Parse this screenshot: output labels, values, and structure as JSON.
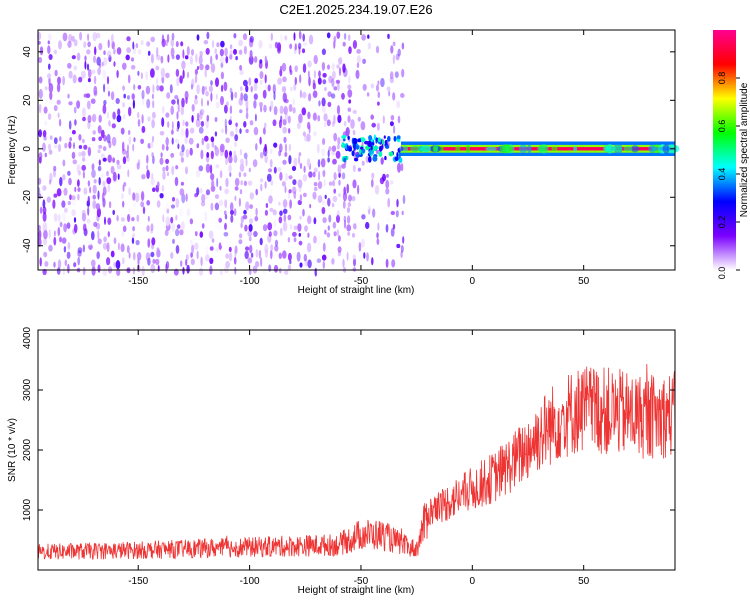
{
  "chart_data": [
    {
      "type": "heatmap",
      "title": "C2E1.2025.234.19.07.E26",
      "xlabel": "Height of straight line (km)",
      "ylabel": "Frequency (Hz)",
      "xlim": [
        -195,
        91
      ],
      "ylim": [
        -50,
        49
      ],
      "xticks": [
        -150,
        -100,
        -50,
        0,
        50
      ],
      "yticks": [
        -40,
        -20,
        0,
        20,
        40
      ],
      "description_values": {
        "noise_region_x": [
          -195,
          -30
        ],
        "carrier_line_frequency": 0,
        "carrier_line_x": [
          -32,
          91
        ],
        "carrier_line_amplitude": 0.95
      },
      "colorbar": {
        "label": "Normalized spectral amplitude",
        "range": [
          0.0,
          1.0
        ],
        "ticks": [
          0.0,
          0.2,
          0.4,
          0.6,
          0.8
        ],
        "tick_labels": [
          "0.0",
          "0.2",
          "0.4",
          "0.6",
          "0.8"
        ],
        "colors": [
          "#ffffff",
          "#7a00ff",
          "#0000ff",
          "#00ffff",
          "#00ff00",
          "#ffff00",
          "#ff0000",
          "#ff0090"
        ]
      }
    },
    {
      "type": "line",
      "xlabel": "Height of straight line (km)",
      "ylabel": "SNR (10 * v/v)",
      "xlim": [
        -195,
        91
      ],
      "ylim": [
        0,
        4000
      ],
      "xticks": [
        -150,
        -100,
        -50,
        0,
        50
      ],
      "yticks": [
        1000,
        2000,
        3000,
        4000
      ],
      "color": "#ee3333",
      "trend": {
        "x": [
          -195,
          -150,
          -100,
          -60,
          -50,
          -40,
          -30,
          -25,
          -20,
          -10,
          0,
          10,
          20,
          30,
          40,
          50,
          60,
          70,
          80,
          91
        ],
        "y": [
          300,
          330,
          380,
          420,
          600,
          580,
          400,
          350,
          950,
          1150,
          1350,
          1550,
          1850,
          2250,
          2550,
          2700,
          2650,
          2600,
          2550,
          2600
        ]
      }
    }
  ]
}
